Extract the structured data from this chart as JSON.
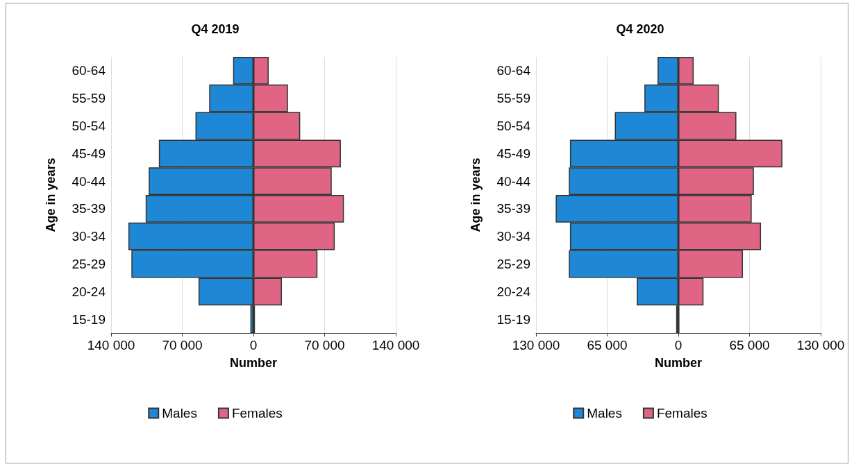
{
  "chart_data": [
    {
      "type": "bar",
      "title": "Q4 2019",
      "orientation": "horizontal",
      "stacked": true,
      "xlabel": "Number",
      "ylabel": "Age in years",
      "categories": [
        "60-64",
        "55-59",
        "50-54",
        "45-49",
        "40-44",
        "35-39",
        "30-34",
        "25-29",
        "20-24",
        "15-19"
      ],
      "series": [
        {
          "name": "Males",
          "color": "#1f88d6",
          "values": [
            -20000,
            -43500,
            -57000,
            -93000,
            -103000,
            -106000,
            -123000,
            -120000,
            -54000,
            -3000
          ]
        },
        {
          "name": "Females",
          "color": "#e06484",
          "values": [
            15000,
            34000,
            46000,
            86000,
            77000,
            89000,
            80000,
            63000,
            28000,
            1500
          ]
        }
      ],
      "xlim": [
        -140000,
        140000
      ],
      "xticks": [
        {
          "value": -140000,
          "label": "140 000"
        },
        {
          "value": -70000,
          "label": "70 000"
        },
        0,
        {
          "value": 70000,
          "label": "70 000"
        },
        {
          "value": 140000,
          "label": "140 000"
        }
      ],
      "grid": "x",
      "legend": "bottom"
    },
    {
      "type": "bar",
      "title": "Q4 2020",
      "orientation": "horizontal",
      "stacked": true,
      "xlabel": "Number",
      "ylabel": "Age in years",
      "categories": [
        "60-64",
        "55-59",
        "50-54",
        "45-49",
        "40-44",
        "35-39",
        "30-34",
        "25-29",
        "20-24",
        "15-19"
      ],
      "series": [
        {
          "name": "Males",
          "color": "#1f88d6",
          "values": [
            -19000,
            -31000,
            -58000,
            -99000,
            -100000,
            -112000,
            -99000,
            -100000,
            -38000,
            -2000
          ]
        },
        {
          "name": "Females",
          "color": "#e06484",
          "values": [
            14000,
            37000,
            53000,
            95000,
            69000,
            67000,
            75500,
            59000,
            23000,
            1000
          ]
        }
      ],
      "xlim": [
        -130000,
        130000
      ],
      "xticks": [
        {
          "value": -130000,
          "label": "130 000"
        },
        {
          "value": -65000,
          "label": "65 000"
        },
        0,
        {
          "value": 65000,
          "label": "65 000"
        },
        {
          "value": 130000,
          "label": "130 000"
        }
      ],
      "grid": "x",
      "legend": "bottom"
    }
  ]
}
